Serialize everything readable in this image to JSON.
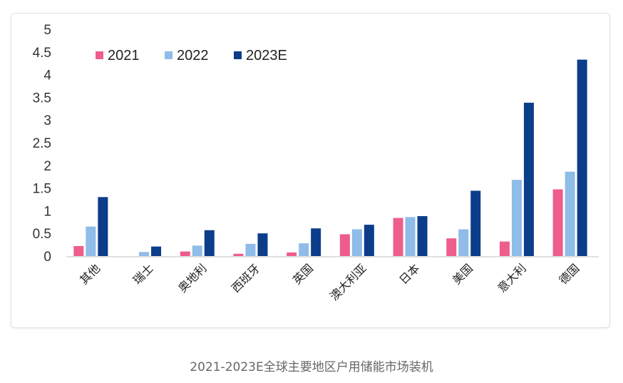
{
  "chart_data": {
    "type": "bar",
    "title": "",
    "xlabel": "",
    "ylabel": "",
    "ylim": [
      0,
      5
    ],
    "yticks": [
      "0",
      "0.5",
      "1",
      "1.5",
      "2",
      "2.5",
      "3",
      "3.5",
      "4",
      "4.5",
      "5"
    ],
    "grid": false,
    "legend_position": "top-left",
    "categories": [
      "其他",
      "瑞士",
      "奥地利",
      "西班牙",
      "英国",
      "澳大利亚",
      "日本",
      "美国",
      "意大利",
      "德国"
    ],
    "series": [
      {
        "name": "2021",
        "color": "#ee5d8c",
        "values": [
          0.22,
          0.0,
          0.1,
          0.05,
          0.08,
          0.48,
          0.84,
          0.39,
          0.32,
          1.47
        ]
      },
      {
        "name": "2022",
        "color": "#8fbce8",
        "values": [
          0.65,
          0.09,
          0.23,
          0.27,
          0.28,
          0.59,
          0.86,
          0.59,
          1.68,
          1.86
        ]
      },
      {
        "name": "2023E",
        "color": "#0c3d8a",
        "values": [
          1.3,
          0.21,
          0.57,
          0.5,
          0.61,
          0.69,
          0.88,
          1.44,
          3.38,
          4.33
        ]
      }
    ]
  },
  "caption": "2021-2023E全球主要地区户用储能市场装机"
}
